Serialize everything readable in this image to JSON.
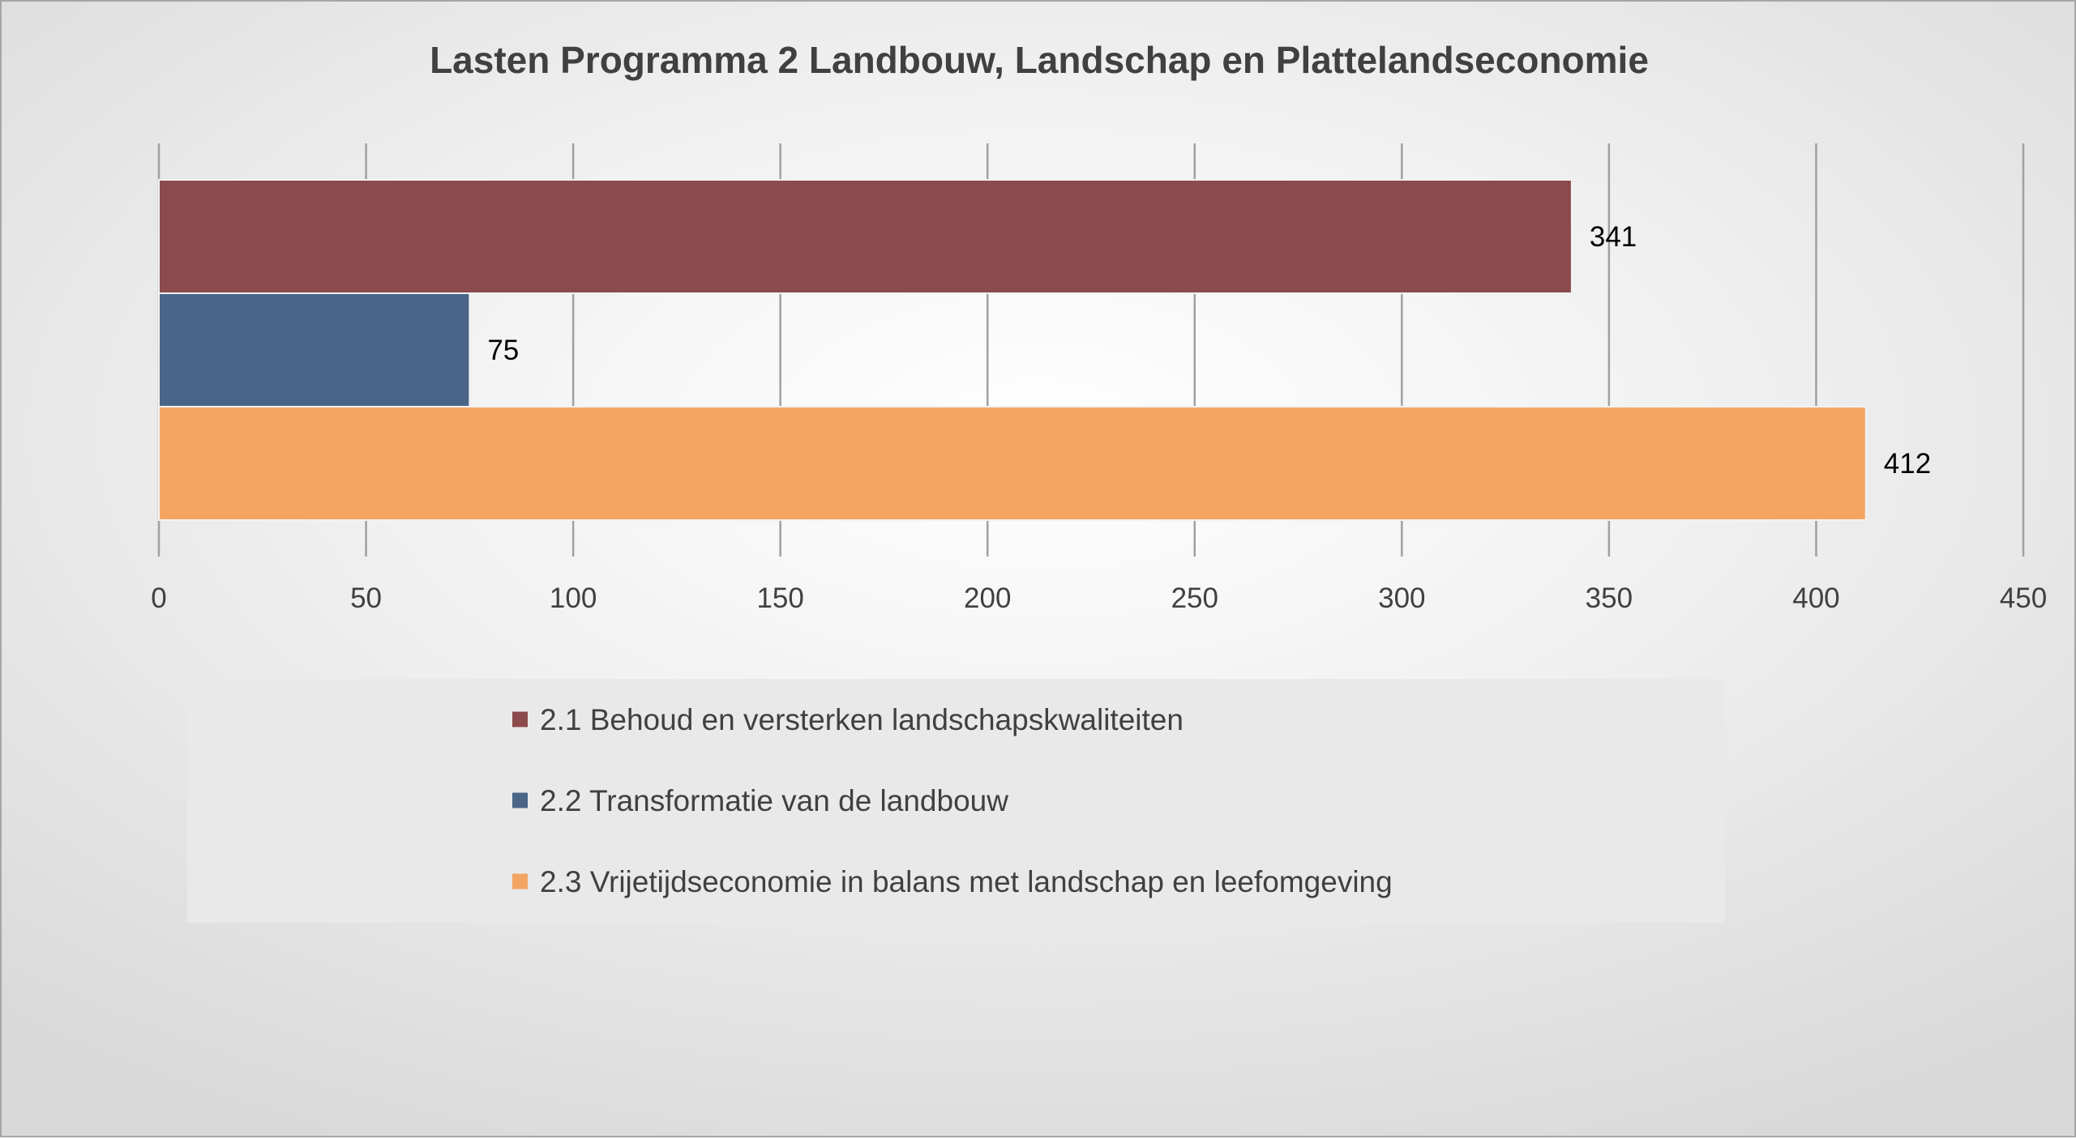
{
  "chart_data": {
    "type": "bar",
    "orientation": "horizontal",
    "title": "Lasten Programma 2 Landbouw, Landschap en Plattelandseconomie",
    "xlabel": "",
    "ylabel": "",
    "xlim": [
      0,
      450
    ],
    "ticks": [
      0,
      50,
      100,
      150,
      200,
      250,
      300,
      350,
      400,
      450
    ],
    "tick_labels": [
      "0",
      "50",
      "100",
      "150",
      "200",
      "250",
      "300",
      "350",
      "400",
      "450"
    ],
    "grid": true,
    "legend_position": "bottom",
    "series": [
      {
        "name": "2.1 Behoud en versterken landschapskwaliteiten",
        "value": 341,
        "label": "341",
        "color": "#8B4A4C"
      },
      {
        "name": "2.2 Transformatie van de landbouw",
        "value": 75,
        "label": "75",
        "color": "#4A6588"
      },
      {
        "name": "2.3 Vrijetijdseconomie in balans met landschap en leefomgeving",
        "value": 412,
        "label": "412",
        "color": "#F5A562"
      }
    ]
  }
}
